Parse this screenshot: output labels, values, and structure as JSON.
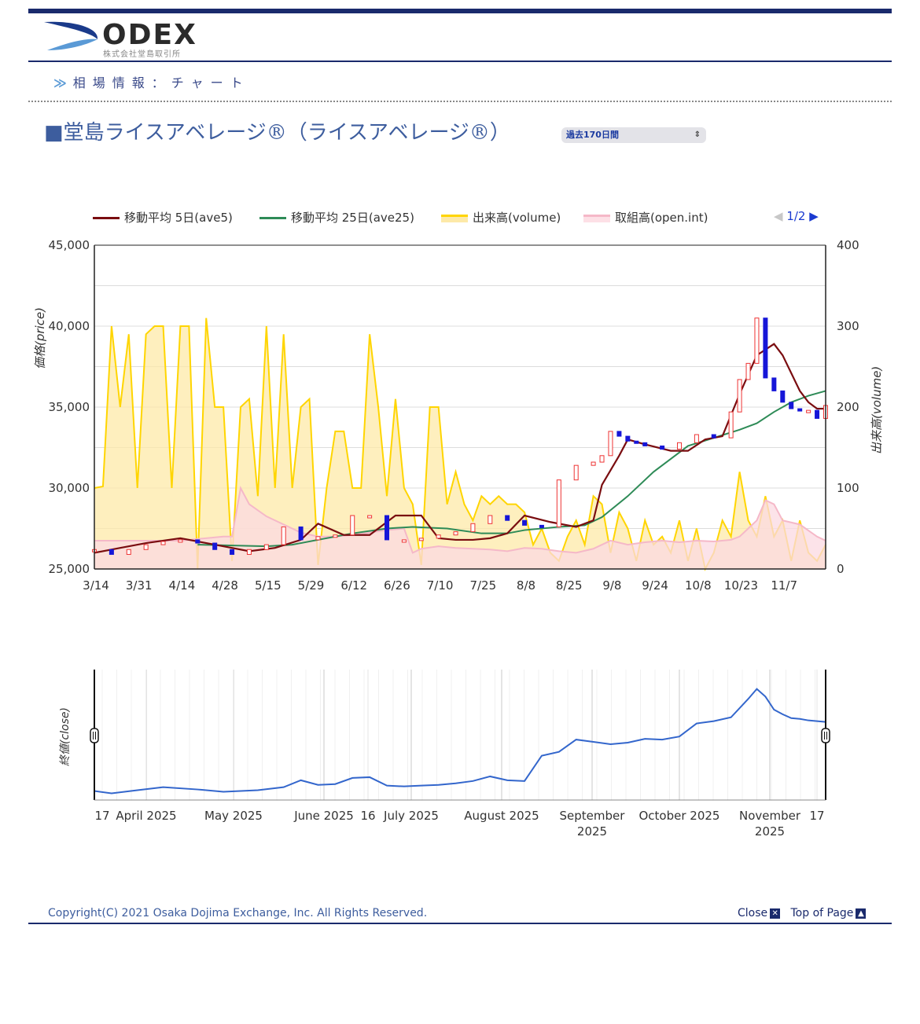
{
  "header": {
    "logo_text": "ODEX",
    "logo_sub": "株式会社堂島取引所",
    "breadcrumb": "相場情報：チャート",
    "title": "■堂島ライスアベレージ®（ライスアベレージ®）",
    "period_select": "過去170日間",
    "pager": {
      "prev": "◀",
      "page": "1/2",
      "next": "▶"
    }
  },
  "colors": {
    "ave5": "#7a0d10",
    "ave25": "#2e8b57",
    "volume": "#ffd500",
    "volume_fill": "#fde9a8",
    "open_int": "#f5b8c8",
    "up": "#ee3333",
    "down": "#1616d8",
    "brand": "#1a2a6c",
    "nav_line": "#3366cc"
  },
  "chart_data": [
    {
      "type": "line",
      "title": "",
      "ylabel": "価格(price)",
      "y2label": "出来高(volume)",
      "ylim": [
        25000,
        45000
      ],
      "y2lim": [
        0,
        400
      ],
      "yticks": [
        "25,000",
        "30,000",
        "35,000",
        "40,000",
        "45,000"
      ],
      "y2ticks": [
        "0",
        "100",
        "200",
        "300",
        "400"
      ],
      "xticks": [
        "3/14",
        "3/31",
        "4/14",
        "4/28",
        "5/15",
        "5/29",
        "6/12",
        "6/26",
        "7/10",
        "7/25",
        "8/8",
        "8/25",
        "9/8",
        "9/24",
        "10/8",
        "10/23",
        "11/7"
      ],
      "legend": [
        "移動平均 5日(ave5)",
        "移動平均 25日(ave25)",
        "出来高(volume)",
        "取組高(open.int)"
      ],
      "legend_position": "top",
      "grid": true,
      "series": [
        {
          "name": "移動平均 5日(ave5)",
          "axis": "left",
          "x": [
            0,
            6,
            12,
            20,
            28,
            36,
            42,
            48,
            52,
            58,
            64,
            70,
            76,
            80,
            84,
            88,
            92,
            96,
            100,
            106,
            112,
            116,
            118,
            122,
            124,
            128,
            134,
            138,
            142,
            146,
            150,
            154,
            158,
            160,
            164,
            166,
            168,
            170
          ],
          "y": [
            26000,
            26300,
            26600,
            26900,
            26500,
            26100,
            26300,
            26800,
            27800,
            27100,
            27100,
            28300,
            28300,
            26900,
            26800,
            26800,
            26900,
            27200,
            28300,
            27900,
            27600,
            28000,
            30200,
            32000,
            33000,
            32700,
            32300,
            32300,
            33000,
            33200,
            35800,
            38200,
            38900,
            38200,
            36000,
            35300,
            34900,
            34900
          ]
        },
        {
          "name": "移動平均 25日(ave25)",
          "axis": "left",
          "x": [
            24,
            40,
            46,
            52,
            60,
            68,
            74,
            82,
            90,
            96,
            100,
            108,
            114,
            118,
            124,
            130,
            138,
            144,
            150,
            154,
            158,
            162,
            166,
            170
          ],
          "y": [
            26500,
            26400,
            26500,
            26800,
            27200,
            27500,
            27600,
            27500,
            27200,
            27200,
            27400,
            27600,
            27700,
            28200,
            29500,
            31000,
            32600,
            33100,
            33600,
            34000,
            34700,
            35300,
            35700,
            36000
          ]
        },
        {
          "name": "出来高(volume)",
          "axis": "right",
          "x": [
            0,
            2,
            4,
            6,
            8,
            10,
            12,
            14,
            16,
            18,
            20,
            22,
            24,
            26,
            28,
            30,
            32,
            34,
            36,
            38,
            40,
            42,
            44,
            46,
            48,
            50,
            52,
            54,
            56,
            58,
            60,
            62,
            64,
            66,
            68,
            70,
            72,
            74,
            76,
            78,
            80,
            82,
            84,
            86,
            88,
            90,
            92,
            94,
            96,
            98,
            100,
            102,
            104,
            106,
            108,
            110,
            112,
            114,
            116,
            118,
            120,
            122,
            124,
            126,
            128,
            130,
            132,
            134,
            136,
            138,
            140,
            142,
            144,
            146,
            148,
            150,
            152,
            154,
            156,
            158,
            160,
            162,
            164,
            166,
            168,
            170
          ],
          "y": [
            100,
            102,
            300,
            200,
            290,
            100,
            290,
            300,
            300,
            100,
            300,
            300,
            0,
            310,
            200,
            200,
            10,
            200,
            210,
            90,
            300,
            100,
            290,
            100,
            200,
            210,
            5,
            100,
            170,
            170,
            100,
            100,
            290,
            200,
            90,
            210,
            100,
            80,
            5,
            200,
            200,
            80,
            120,
            80,
            60,
            90,
            80,
            90,
            80,
            80,
            70,
            30,
            50,
            20,
            10,
            40,
            60,
            30,
            90,
            80,
            20,
            70,
            50,
            10,
            60,
            30,
            40,
            20,
            60,
            10,
            50,
            0,
            20,
            60,
            40,
            120,
            60,
            40,
            90,
            40,
            60,
            10,
            60,
            20,
            10,
            30
          ]
        },
        {
          "name": "取組高(open.int)",
          "axis": "right",
          "x": [
            0,
            20,
            30,
            32,
            34,
            36,
            40,
            44,
            48,
            52,
            56,
            60,
            64,
            68,
            72,
            74,
            76,
            80,
            84,
            88,
            92,
            96,
            100,
            104,
            108,
            112,
            116,
            120,
            124,
            128,
            132,
            136,
            140,
            144,
            148,
            150,
            152,
            154,
            156,
            158,
            160,
            164,
            168,
            170
          ],
          "y": [
            35,
            35,
            40,
            40,
            100,
            80,
            65,
            55,
            45,
            40,
            40,
            42,
            45,
            48,
            50,
            20,
            25,
            28,
            26,
            25,
            24,
            22,
            26,
            25,
            22,
            20,
            25,
            35,
            30,
            33,
            35,
            33,
            35,
            34,
            36,
            40,
            50,
            60,
            85,
            80,
            60,
            55,
            40,
            35
          ]
        }
      ],
      "candles": {
        "up_color": "#ee3333",
        "down_color": "#1616d8",
        "x": [
          0,
          4,
          8,
          12,
          16,
          20,
          24,
          28,
          32,
          36,
          40,
          44,
          48,
          52,
          56,
          60,
          64,
          68,
          72,
          76,
          80,
          84,
          88,
          92,
          96,
          100,
          104,
          108,
          112,
          116,
          118,
          120,
          122,
          124,
          126,
          128,
          132,
          136,
          140,
          144,
          148,
          150,
          152,
          154,
          156,
          158,
          160,
          162,
          164,
          166,
          168,
          170
        ],
        "close": [
          26200,
          25900,
          26200,
          26500,
          26700,
          26800,
          26600,
          26200,
          25900,
          26200,
          26500,
          27600,
          26800,
          27000,
          27100,
          28300,
          28300,
          26800,
          26800,
          26900,
          27100,
          27300,
          27800,
          28300,
          28000,
          27700,
          27600,
          30500,
          31400,
          31600,
          32000,
          33500,
          33200,
          32900,
          32800,
          32600,
          32400,
          32800,
          33300,
          33100,
          34700,
          36700,
          37700,
          40500,
          36800,
          36000,
          35300,
          34900,
          34800,
          34800,
          34300,
          35100
        ]
      }
    },
    {
      "type": "line",
      "title": "",
      "ylabel": "終値(close)",
      "xticks": [
        "17",
        "April 2025",
        "May 2025",
        "June 2025",
        "16",
        "July 2025",
        "August 2025",
        "September 2025",
        "October 2025",
        "November 2025",
        "17"
      ],
      "series": [
        {
          "name": "",
          "x": [
            0,
            4,
            10,
            16,
            24,
            30,
            38,
            44,
            48,
            52,
            56,
            60,
            64,
            68,
            72,
            76,
            80,
            84,
            88,
            92,
            96,
            100,
            104,
            108,
            112,
            116,
            120,
            124,
            128,
            132,
            136,
            140,
            144,
            148,
            152,
            154,
            156,
            158,
            160,
            162,
            164,
            166,
            168,
            170
          ],
          "y": [
            26200,
            25900,
            26300,
            26700,
            26400,
            26100,
            26300,
            26700,
            27600,
            27000,
            27100,
            27900,
            28000,
            26900,
            26800,
            26900,
            27000,
            27200,
            27500,
            28100,
            27600,
            27500,
            30800,
            31300,
            32900,
            32600,
            32300,
            32500,
            33000,
            32900,
            33300,
            35000,
            35300,
            35800,
            38200,
            39500,
            38500,
            36800,
            36200,
            35700,
            35600,
            35400,
            35300,
            35200
          ]
        }
      ]
    }
  ],
  "footer": {
    "copyright": "Copyright(C) 2021  Osaka Dojima Exchange, Inc. All Rights Reserved.",
    "close": "Close",
    "close_icon": "close-box-icon",
    "top": "Top of Page",
    "top_icon": "up-triangle-box-icon"
  }
}
